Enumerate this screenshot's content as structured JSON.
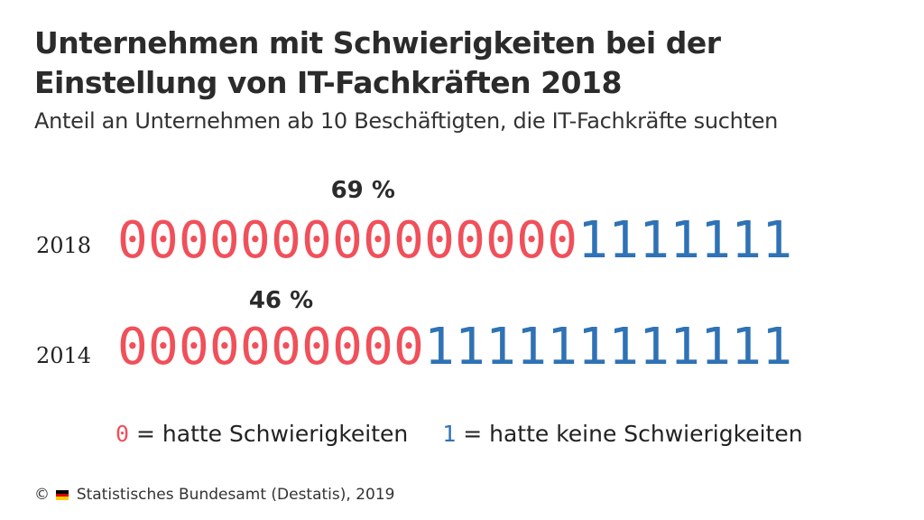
{
  "title": "Unternehmen mit Schwierigkeiten bei der Einstellung von IT-Fachkräften 2018",
  "subtitle": "Anteil an Unternehmen ab 10 Beschäftigten, die IT-Fachkräfte suchten",
  "chart_data": {
    "type": "bar",
    "title": "Unternehmen mit Schwierigkeiten bei der Einstellung von IT-Fachkräften 2018",
    "subtitle": "Anteil an Unternehmen ab 10 Beschäftigten, die IT-Fachkräfte suchten",
    "categories": [
      "2018",
      "2014"
    ],
    "values": [
      69,
      46
    ],
    "value_labels": [
      "69 %",
      "46 %"
    ],
    "series": [
      {
        "name": "hatte Schwierigkeiten",
        "symbol": "0",
        "values": [
          69,
          46
        ],
        "color": "#f0505a"
      },
      {
        "name": "hatte keine Schwierigkeiten",
        "symbol": "1",
        "values": [
          31,
          54
        ],
        "color": "#2f72b5"
      }
    ]
  },
  "legend": {
    "items": [
      {
        "symbol": "0",
        "text": "= hatte Schwierigkeiten"
      },
      {
        "symbol": "1",
        "text": "= hatte keine Schwierigkeiten"
      }
    ]
  },
  "footer": {
    "copyright": "©",
    "source": "Statistisches Bundesamt (Destatis), 2019"
  },
  "colors": {
    "zero": "#f0505a",
    "one": "#2f72b5",
    "flag": [
      "#000000",
      "#dd0000",
      "#ffcc00"
    ]
  }
}
